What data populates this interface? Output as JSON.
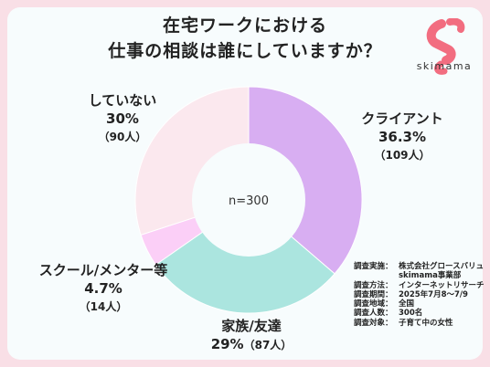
{
  "title": {
    "line1": "在宅ワークにおける",
    "line2": "仕事の相談は誰にしていますか？"
  },
  "brand": {
    "name": "skimama",
    "icon": "skimama-logo-icon"
  },
  "colors": {
    "page_background": "#f9dfe6",
    "card_background": "#f7fcfd",
    "logo": "#f26d80"
  },
  "chart_data": {
    "type": "pie",
    "donut": true,
    "center_label": "n=300",
    "slices": [
      {
        "label": "クライアント",
        "percent": 36.3,
        "percent_label": "36.3%",
        "count": 109,
        "count_label": "（109人）",
        "color": "#d8aef2"
      },
      {
        "label": "家族/友達",
        "percent": 29,
        "percent_label": "29%",
        "count": 87,
        "count_label": "（87人）",
        "color": "#abe5df"
      },
      {
        "label": "スクール/メンター等",
        "percent": 4.7,
        "percent_label": "4.7%",
        "count": 14,
        "count_label": "（14人）",
        "color": "#fbcff7"
      },
      {
        "label": "していない",
        "percent": 30,
        "percent_label": "30%",
        "count": 90,
        "count_label": "（90人）",
        "color": "#fbe8ee"
      }
    ]
  },
  "survey_info": [
    {
      "key": "調査実施：",
      "value": "株式会社グロースバリュ"
    },
    {
      "key": "",
      "value": "skimama事業部"
    },
    {
      "key": "調査方法：",
      "value": "インターネットリサーチ"
    },
    {
      "key": "調査期間：",
      "value": "2025年7月8〜7/9"
    },
    {
      "key": "調査地域：",
      "value": "全国"
    },
    {
      "key": "調査人数：",
      "value": "300名"
    },
    {
      "key": "調査対象：",
      "value": "子育て中の女性"
    }
  ]
}
